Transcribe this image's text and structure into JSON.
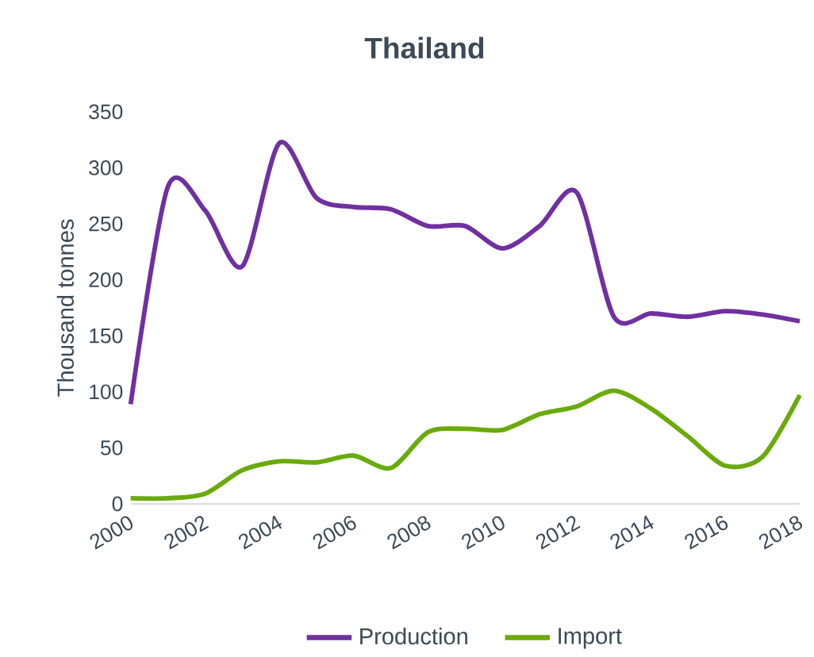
{
  "chart_data": {
    "type": "line",
    "title": "Thailand",
    "ylabel": "Thousand tonnes",
    "x": [
      2000,
      2001,
      2002,
      2003,
      2004,
      2005,
      2006,
      2007,
      2008,
      2009,
      2010,
      2011,
      2012,
      2013,
      2014,
      2015,
      2016,
      2017,
      2018
    ],
    "xlim": [
      2000,
      2018
    ],
    "xticks": [
      2000,
      2002,
      2004,
      2006,
      2008,
      2010,
      2012,
      2014,
      2016,
      2018
    ],
    "ylim": [
      0,
      350
    ],
    "yticks": [
      0,
      50,
      100,
      150,
      200,
      250,
      300,
      350
    ],
    "series": [
      {
        "name": "Production",
        "color": "#7030a0",
        "values": [
          89,
          283,
          262,
          212,
          322,
          273,
          265,
          263,
          248,
          248,
          228,
          248,
          278,
          167,
          170,
          167,
          172,
          169,
          163
        ]
      },
      {
        "name": "Import",
        "color": "#6aaa0a",
        "values": [
          5,
          5,
          9,
          30,
          38,
          37,
          43,
          32,
          64,
          67,
          66,
          80,
          87,
          101,
          85,
          60,
          34,
          42,
          97
        ]
      }
    ],
    "legend": "bottom",
    "grid": false,
    "marker": "none",
    "line_style": "solid"
  }
}
